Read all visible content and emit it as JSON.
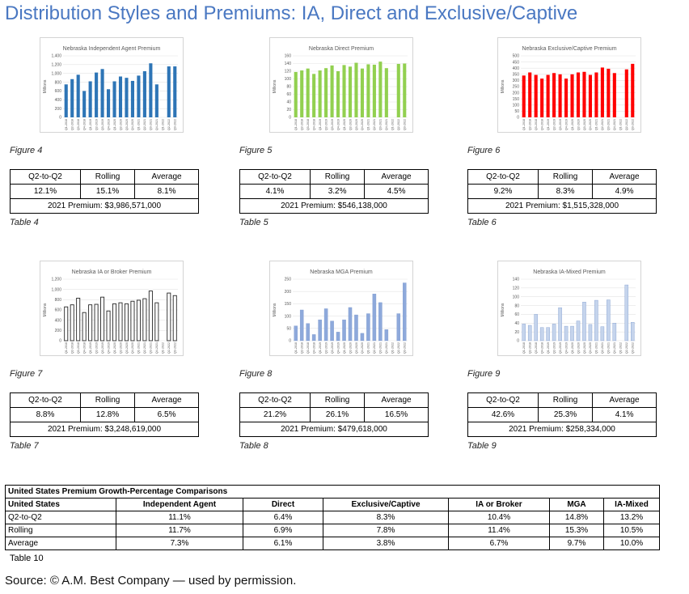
{
  "title": "Distribution Styles and Premiums: IA, Direct and Exclusive/Captive",
  "quarters": [
    "Q1-2018",
    "Q2-2018",
    "Q3-2018",
    "Q4-2018",
    "Q1-2019",
    "Q2-2019",
    "Q3-2019",
    "Q4-2019",
    "Q1-2020",
    "Q2-2020",
    "Q3-2020",
    "Q4-2020",
    "Q1-2021",
    "Q2-2021",
    "Q3-2021",
    "Q4-2021",
    "Q1-2022",
    "Q2-2022",
    "Q3-2022"
  ],
  "chart_data": [
    {
      "type": "bar",
      "title": "Nebraska Independent Agent Premium",
      "ylabel": "Millions",
      "ylim": [
        0,
        1400
      ],
      "yticks": [
        "0",
        "200",
        "400",
        "600",
        "800",
        "1,000",
        "1,200",
        "1,400"
      ],
      "values": [
        750,
        870,
        970,
        600,
        820,
        1020,
        1100,
        640,
        820,
        930,
        900,
        830,
        950,
        1050,
        1230,
        750,
        null,
        1160,
        1160
      ],
      "color": "#2e75b6",
      "style": "solid"
    },
    {
      "type": "bar",
      "title": "Nebraska Direct Premium",
      "ylabel": "Millions",
      "ylim": [
        0,
        160
      ],
      "yticks": [
        "0",
        "20",
        "40",
        "60",
        "80",
        "100",
        "120",
        "140",
        "160"
      ],
      "values": [
        118,
        122,
        127,
        113,
        122,
        128,
        135,
        120,
        136,
        132,
        142,
        127,
        138,
        137,
        145,
        128,
        null,
        139,
        140
      ],
      "color": "#92d050",
      "style": "solid"
    },
    {
      "type": "bar",
      "title": "Nebraska Exclusive/Captive Premium",
      "ylabel": "Millions",
      "ylim": [
        0,
        500
      ],
      "yticks": [
        "0",
        "50",
        "100",
        "150",
        "200",
        "250",
        "300",
        "350",
        "400",
        "450",
        "500"
      ],
      "values": [
        340,
        365,
        345,
        315,
        345,
        360,
        350,
        315,
        350,
        365,
        370,
        345,
        365,
        405,
        395,
        360,
        null,
        390,
        435
      ],
      "color": "#ff0000",
      "style": "solid"
    },
    {
      "type": "bar",
      "title": "Nebraska IA or Broker Premium",
      "ylabel": "Millions",
      "ylim": [
        0,
        1200
      ],
      "yticks": [
        "0",
        "200",
        "400",
        "600",
        "800",
        "1,000",
        "1,200"
      ],
      "values": [
        660,
        700,
        830,
        550,
        700,
        710,
        850,
        580,
        720,
        740,
        720,
        770,
        790,
        820,
        970,
        740,
        null,
        930,
        880
      ],
      "color": "#262626",
      "style": "outline"
    },
    {
      "type": "bar",
      "title": "Nebraska MGA Premium",
      "ylabel": "Millions",
      "ylim": [
        0,
        250
      ],
      "yticks": [
        "0",
        "50",
        "100",
        "150",
        "200",
        "250"
      ],
      "values": [
        60,
        125,
        70,
        25,
        85,
        130,
        80,
        35,
        85,
        135,
        105,
        30,
        110,
        190,
        155,
        45,
        null,
        110,
        235
      ],
      "color": "#8ea9db",
      "style": "solid"
    },
    {
      "type": "bar",
      "title": "Nebraska IA-Mixed Premium",
      "ylabel": "Millions",
      "ylim": [
        0,
        140
      ],
      "yticks": [
        "0",
        "20",
        "40",
        "60",
        "80",
        "100",
        "120",
        "140"
      ],
      "values": [
        38,
        35,
        60,
        30,
        30,
        38,
        75,
        33,
        33,
        45,
        88,
        37,
        92,
        32,
        93,
        40,
        null,
        127,
        42
      ],
      "color": "#c5d4ec",
      "style": "solid"
    }
  ],
  "figures": [
    "Figure 4",
    "Figure 5",
    "Figure 6",
    "Figure 7",
    "Figure 8",
    "Figure 9"
  ],
  "metric_headers": {
    "q2q": "Q2-to-Q2",
    "rolling": "Rolling",
    "average": "Average"
  },
  "tables": [
    {
      "q2q": "12.1%",
      "rolling": "15.1%",
      "average": "8.1%",
      "premium": "2021 Premium: $3,986,571,000",
      "caption": "Table 4"
    },
    {
      "q2q": "4.1%",
      "rolling": "3.2%",
      "average": "4.5%",
      "premium": "2021 Premium: $546,138,000",
      "caption": "Table 5"
    },
    {
      "q2q": "9.2%",
      "rolling": "8.3%",
      "average": "4.9%",
      "premium": "2021 Premium: $1,515,328,000",
      "caption": "Table 6"
    },
    {
      "q2q": "8.8%",
      "rolling": "12.8%",
      "average": "6.5%",
      "premium": "2021 Premium: $3,248,619,000",
      "caption": "Table 7"
    },
    {
      "q2q": "21.2%",
      "rolling": "26.1%",
      "average": "16.5%",
      "premium": "2021 Premium: $479,618,000",
      "caption": "Table 8"
    },
    {
      "q2q": "42.6%",
      "rolling": "25.3%",
      "average": "4.1%",
      "premium": "2021 Premium: $258,334,000",
      "caption": "Table 9"
    }
  ],
  "us_table": {
    "title": "United States Premium Growth-Percentage Comparisons",
    "headers": [
      "United States",
      "Independent Agent",
      "Direct",
      "Exclusive/Captive",
      "IA or Broker",
      "MGA",
      "IA-Mixed"
    ],
    "rows": [
      [
        "Q2-to-Q2",
        "11.1%",
        "6.4%",
        "8.3%",
        "10.4%",
        "14.8%",
        "13.2%"
      ],
      [
        "Rolling",
        "11.7%",
        "6.9%",
        "7.8%",
        "11.4%",
        "15.3%",
        "10.5%"
      ],
      [
        "Average",
        "7.3%",
        "6.1%",
        "3.8%",
        "6.7%",
        "9.7%",
        "10.0%"
      ]
    ],
    "caption": "Table 10"
  },
  "source": "Source: © A.M. Best Company — used by permission."
}
